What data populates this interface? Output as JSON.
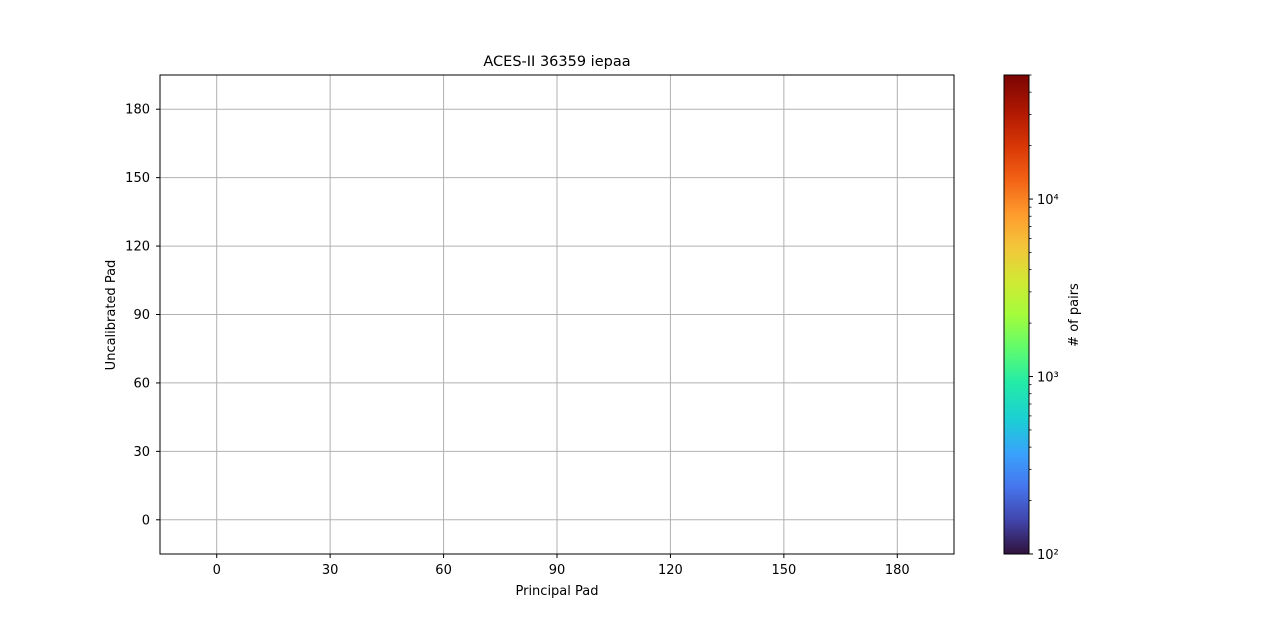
{
  "chart_data": {
    "type": "heatmap",
    "title": "ACES-II 36359 iepaa",
    "xlabel": "Principal Pad",
    "ylabel": "Uncalibrated Pad",
    "xlim": [
      -15,
      195
    ],
    "ylim": [
      -15,
      195
    ],
    "x_ticks": [
      "0",
      "30",
      "60",
      "90",
      "120",
      "150",
      "180"
    ],
    "y_ticks": [
      "0",
      "30",
      "60",
      "90",
      "120",
      "150",
      "180"
    ],
    "grid": true,
    "points": [],
    "colorbar": {
      "label": "# of pairs",
      "scale": "log",
      "range": [
        100,
        50000
      ],
      "colormap": "turbo",
      "ticks": [
        {
          "value": 100,
          "label": "10²"
        },
        {
          "value": 1000,
          "label": "10³"
        },
        {
          "value": 10000,
          "label": "10⁴"
        }
      ]
    }
  },
  "colors": {
    "grid": "#b0b0b0",
    "axis": "#000000"
  }
}
